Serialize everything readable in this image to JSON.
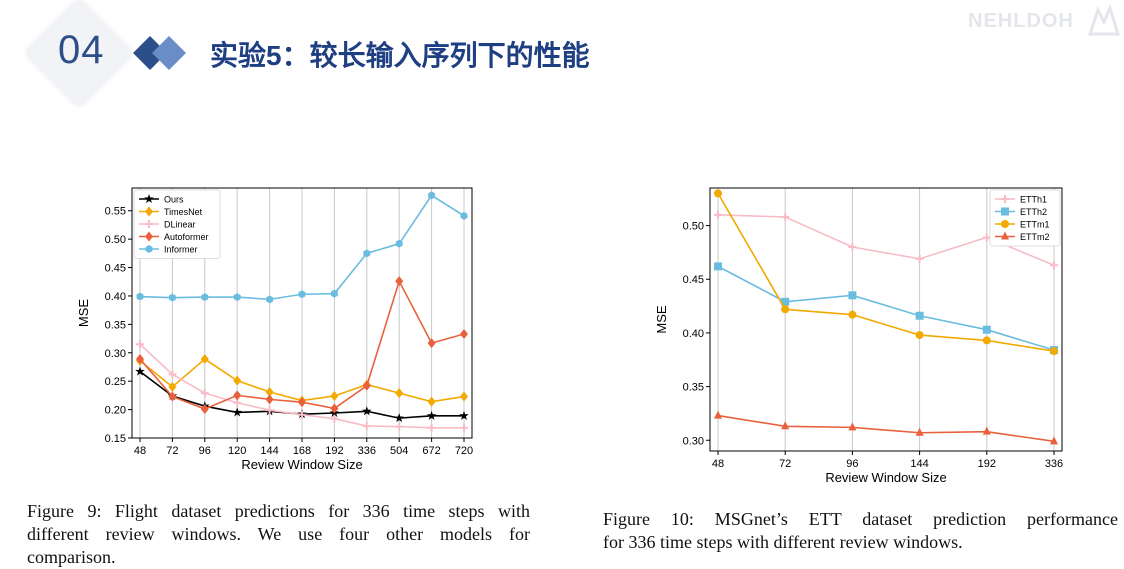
{
  "header": {
    "section_number": "04",
    "title": "实验5：较长输入序列下的性能",
    "watermark": "NEHLDOH"
  },
  "colors": {
    "accent": "#2c4f8a",
    "Ours": "#000000",
    "TimesNet": "#f2a900",
    "DLinear": "#f7bcc6",
    "Autoformer": "#e8603c",
    "Informer": "#6bbde0",
    "ETTh1": "#f7bcc6",
    "ETTh2": "#6bbde0",
    "ETTm1": "#f2a900",
    "ETTm2": "#e8603c"
  },
  "captions": {
    "fig9": [
      "Figure 9: Flight dataset predictions for 336 time steps with",
      "different review windows. We use four other models for",
      "comparison."
    ],
    "fig10": [
      "Figure 10: MSGnet’s ETT dataset prediction performance",
      "for 336 time steps with different review windows."
    ]
  },
  "chart_data": [
    {
      "type": "line",
      "xlabel": "Review Window Size",
      "ylabel": "MSE",
      "categories": [
        "48",
        "72",
        "96",
        "120",
        "144",
        "168",
        "192",
        "336",
        "504",
        "672",
        "720"
      ],
      "ylim": [
        0.15,
        0.59
      ],
      "yticks": [
        "0.15",
        "0.20",
        "0.25",
        "0.30",
        "0.35",
        "0.40",
        "0.45",
        "0.50",
        "0.55"
      ],
      "legend": "top-left",
      "grid": "vertical",
      "series": [
        {
          "name": "Ours",
          "marker": "star",
          "values": [
            0.267,
            0.224,
            0.206,
            0.195,
            0.197,
            0.192,
            0.194,
            0.197,
            0.185,
            0.189,
            0.189
          ]
        },
        {
          "name": "TimesNet",
          "marker": "diamond",
          "values": [
            0.286,
            0.24,
            0.289,
            0.251,
            0.231,
            0.216,
            0.224,
            0.244,
            0.229,
            0.214,
            0.223
          ]
        },
        {
          "name": "DLinear",
          "marker": "plus",
          "values": [
            0.315,
            0.262,
            0.229,
            0.212,
            0.199,
            0.191,
            0.184,
            0.171,
            0.17,
            0.168,
            0.168
          ]
        },
        {
          "name": "Autoformer",
          "marker": "diamond",
          "values": [
            0.289,
            0.223,
            0.201,
            0.225,
            0.218,
            0.213,
            0.202,
            0.242,
            0.426,
            0.317,
            0.333
          ]
        },
        {
          "name": "Informer",
          "marker": "hexagon",
          "values": [
            0.399,
            0.397,
            0.398,
            0.398,
            0.394,
            0.403,
            0.404,
            0.475,
            0.492,
            0.577,
            0.541
          ]
        }
      ]
    },
    {
      "type": "line",
      "xlabel": "Review Window Size",
      "ylabel": "MSE",
      "categories": [
        "48",
        "72",
        "96",
        "144",
        "192",
        "336"
      ],
      "ylim": [
        0.29,
        0.535
      ],
      "yticks": [
        "0.30",
        "0.35",
        "0.40",
        "0.45",
        "0.50"
      ],
      "legend": "top-right",
      "grid": "vertical",
      "series": [
        {
          "name": "ETTh1",
          "marker": "plus",
          "values": [
            0.51,
            0.508,
            0.48,
            0.469,
            0.489,
            0.463
          ]
        },
        {
          "name": "ETTh2",
          "marker": "square",
          "values": [
            0.462,
            0.429,
            0.435,
            0.416,
            0.403,
            0.384
          ]
        },
        {
          "name": "ETTm1",
          "marker": "circle",
          "values": [
            0.53,
            0.422,
            0.417,
            0.398,
            0.393,
            0.383
          ]
        },
        {
          "name": "ETTm2",
          "marker": "triangle",
          "values": [
            0.323,
            0.313,
            0.312,
            0.307,
            0.308,
            0.299
          ]
        }
      ]
    }
  ]
}
